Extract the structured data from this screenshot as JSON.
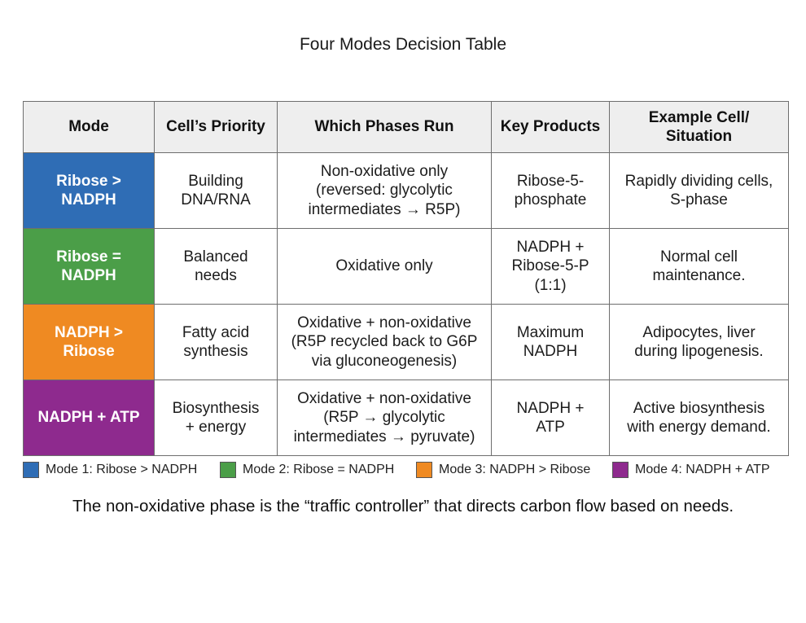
{
  "title": "Four Modes Decision Table",
  "table": {
    "headers": [
      "Mode",
      "Cell’s Priority",
      "Which Phases Run",
      "Key Products",
      "Example Cell/\nSituation"
    ],
    "rows": [
      {
        "mode": "Ribose >\nNADPH",
        "color": "#2f6db5",
        "priority": "Building\nDNA/RNA",
        "phases": "Non-oxidative only\n(reversed: glycolytic\nintermediates → R5P)",
        "products": "Ribose-5-\nphosphate",
        "example": "Rapidly dividing cells,\nS-phase"
      },
      {
        "mode": "Ribose =\nNADPH",
        "color": "#4b9e48",
        "priority": "Balanced\nneeds",
        "phases": "Oxidative only",
        "products": "NADPH +\nRibose-5-P\n(1:1)",
        "example": "Normal cell\nmaintenance."
      },
      {
        "mode": "NADPH >\nRibose",
        "color": "#ef8a22",
        "priority": "Fatty acid\nsynthesis",
        "phases": "Oxidative + non-oxidative\n(R5P recycled back to G6P\nvia gluconeogenesis)",
        "products": "Maximum\nNADPH",
        "example": "Adipocytes, liver\nduring lipogenesis."
      },
      {
        "mode": "NADPH + ATP",
        "color": "#8e2a8e",
        "priority": "Biosynthesis\n+ energy",
        "phases": "Oxidative + non-oxidative\n(R5P → glycolytic\nintermediates → pyruvate)",
        "products": "NADPH +\nATP",
        "example": "Active biosynthesis\nwith energy demand."
      }
    ]
  },
  "legend": [
    {
      "label": "Mode 1: Ribose > NADPH",
      "color": "#2f6db5"
    },
    {
      "label": "Mode 2: Ribose = NADPH",
      "color": "#4b9e48"
    },
    {
      "label": "Mode 3: NADPH > Ribose",
      "color": "#ef8a22"
    },
    {
      "label": "Mode 4: NADPH + ATP",
      "color": "#8e2a8e"
    }
  ],
  "caption": "The non-oxidative phase is the “traffic controller” that directs carbon flow based on needs."
}
